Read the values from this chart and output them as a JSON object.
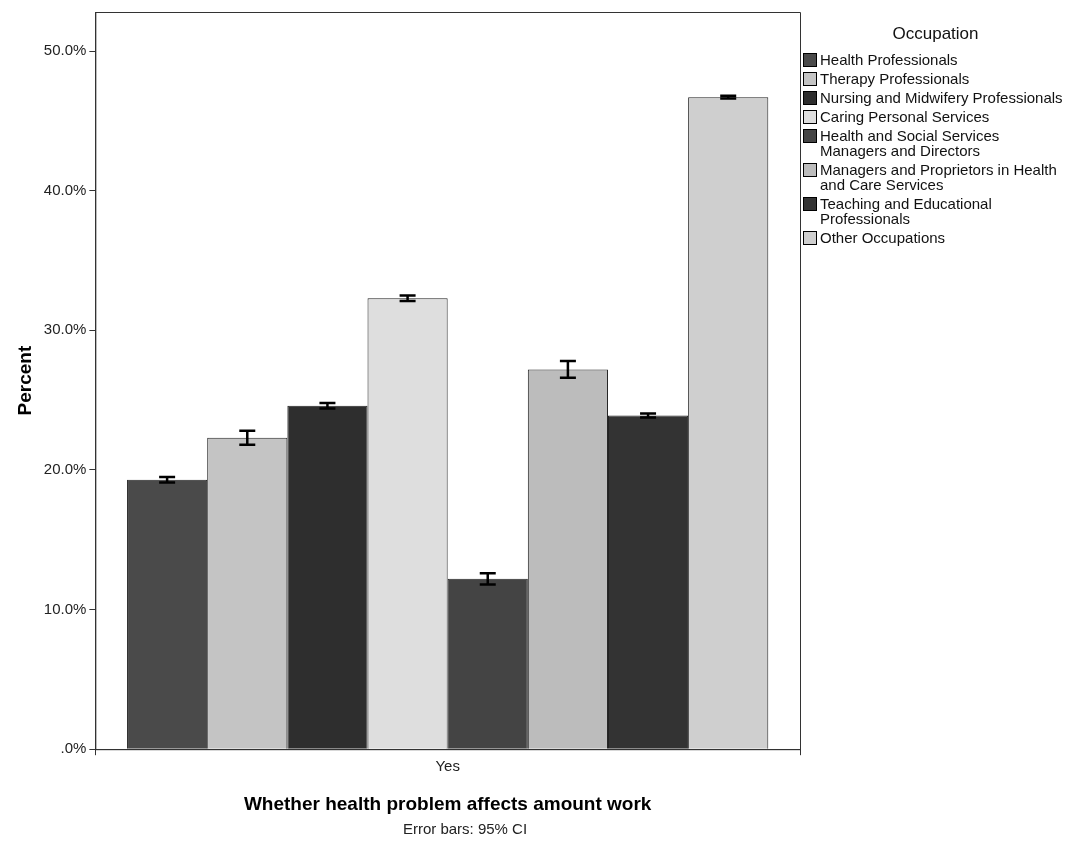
{
  "chart_data": {
    "type": "bar",
    "categories": [
      "Yes"
    ],
    "xlabel": "Whether health problem affects amount work",
    "ylabel": "Percent",
    "legend_title": "Occupation",
    "legend": "right",
    "grid": false,
    "ylim": [
      0,
      52.8
    ],
    "yticks": [
      {
        "value": 0,
        "label": ".0%"
      },
      {
        "value": 10,
        "label": "10.0%"
      },
      {
        "value": 20,
        "label": "20.0%"
      },
      {
        "value": 30,
        "label": "30.0%"
      },
      {
        "value": 40,
        "label": "40.0%"
      },
      {
        "value": 50,
        "label": "50.0%"
      }
    ],
    "annotations": [
      "Error bars: 95% CI"
    ],
    "series": [
      {
        "name": "Health Professionals",
        "color": "#4a4a4a",
        "values": [
          19.3
        ],
        "errors": [
          0.2
        ]
      },
      {
        "name": "Therapy Professionals",
        "color": "#c4c4c4",
        "values": [
          22.3
        ],
        "errors": [
          0.5
        ]
      },
      {
        "name": "Nursing and Midwifery Professionals",
        "color": "#2e2e2e",
        "values": [
          24.6
        ],
        "errors": [
          0.2
        ]
      },
      {
        "name": "Caring Personal Services",
        "color": "#dedede",
        "values": [
          32.3
        ],
        "errors": [
          0.2
        ]
      },
      {
        "name": "Health and Social Services Managers and Directors",
        "color": "#444444",
        "values": [
          12.2
        ],
        "errors": [
          0.4
        ]
      },
      {
        "name": "Managers and Proprietors in Health and Care Services",
        "color": "#bcbcbc",
        "values": [
          27.2
        ],
        "errors": [
          0.6
        ]
      },
      {
        "name": "Teaching and Educational Professionals",
        "color": "#333333",
        "values": [
          23.9
        ],
        "errors": [
          0.15
        ]
      },
      {
        "name": "Other Occupations",
        "color": "#cfcfcf",
        "values": [
          46.7
        ],
        "errors": [
          0.1
        ]
      }
    ]
  }
}
